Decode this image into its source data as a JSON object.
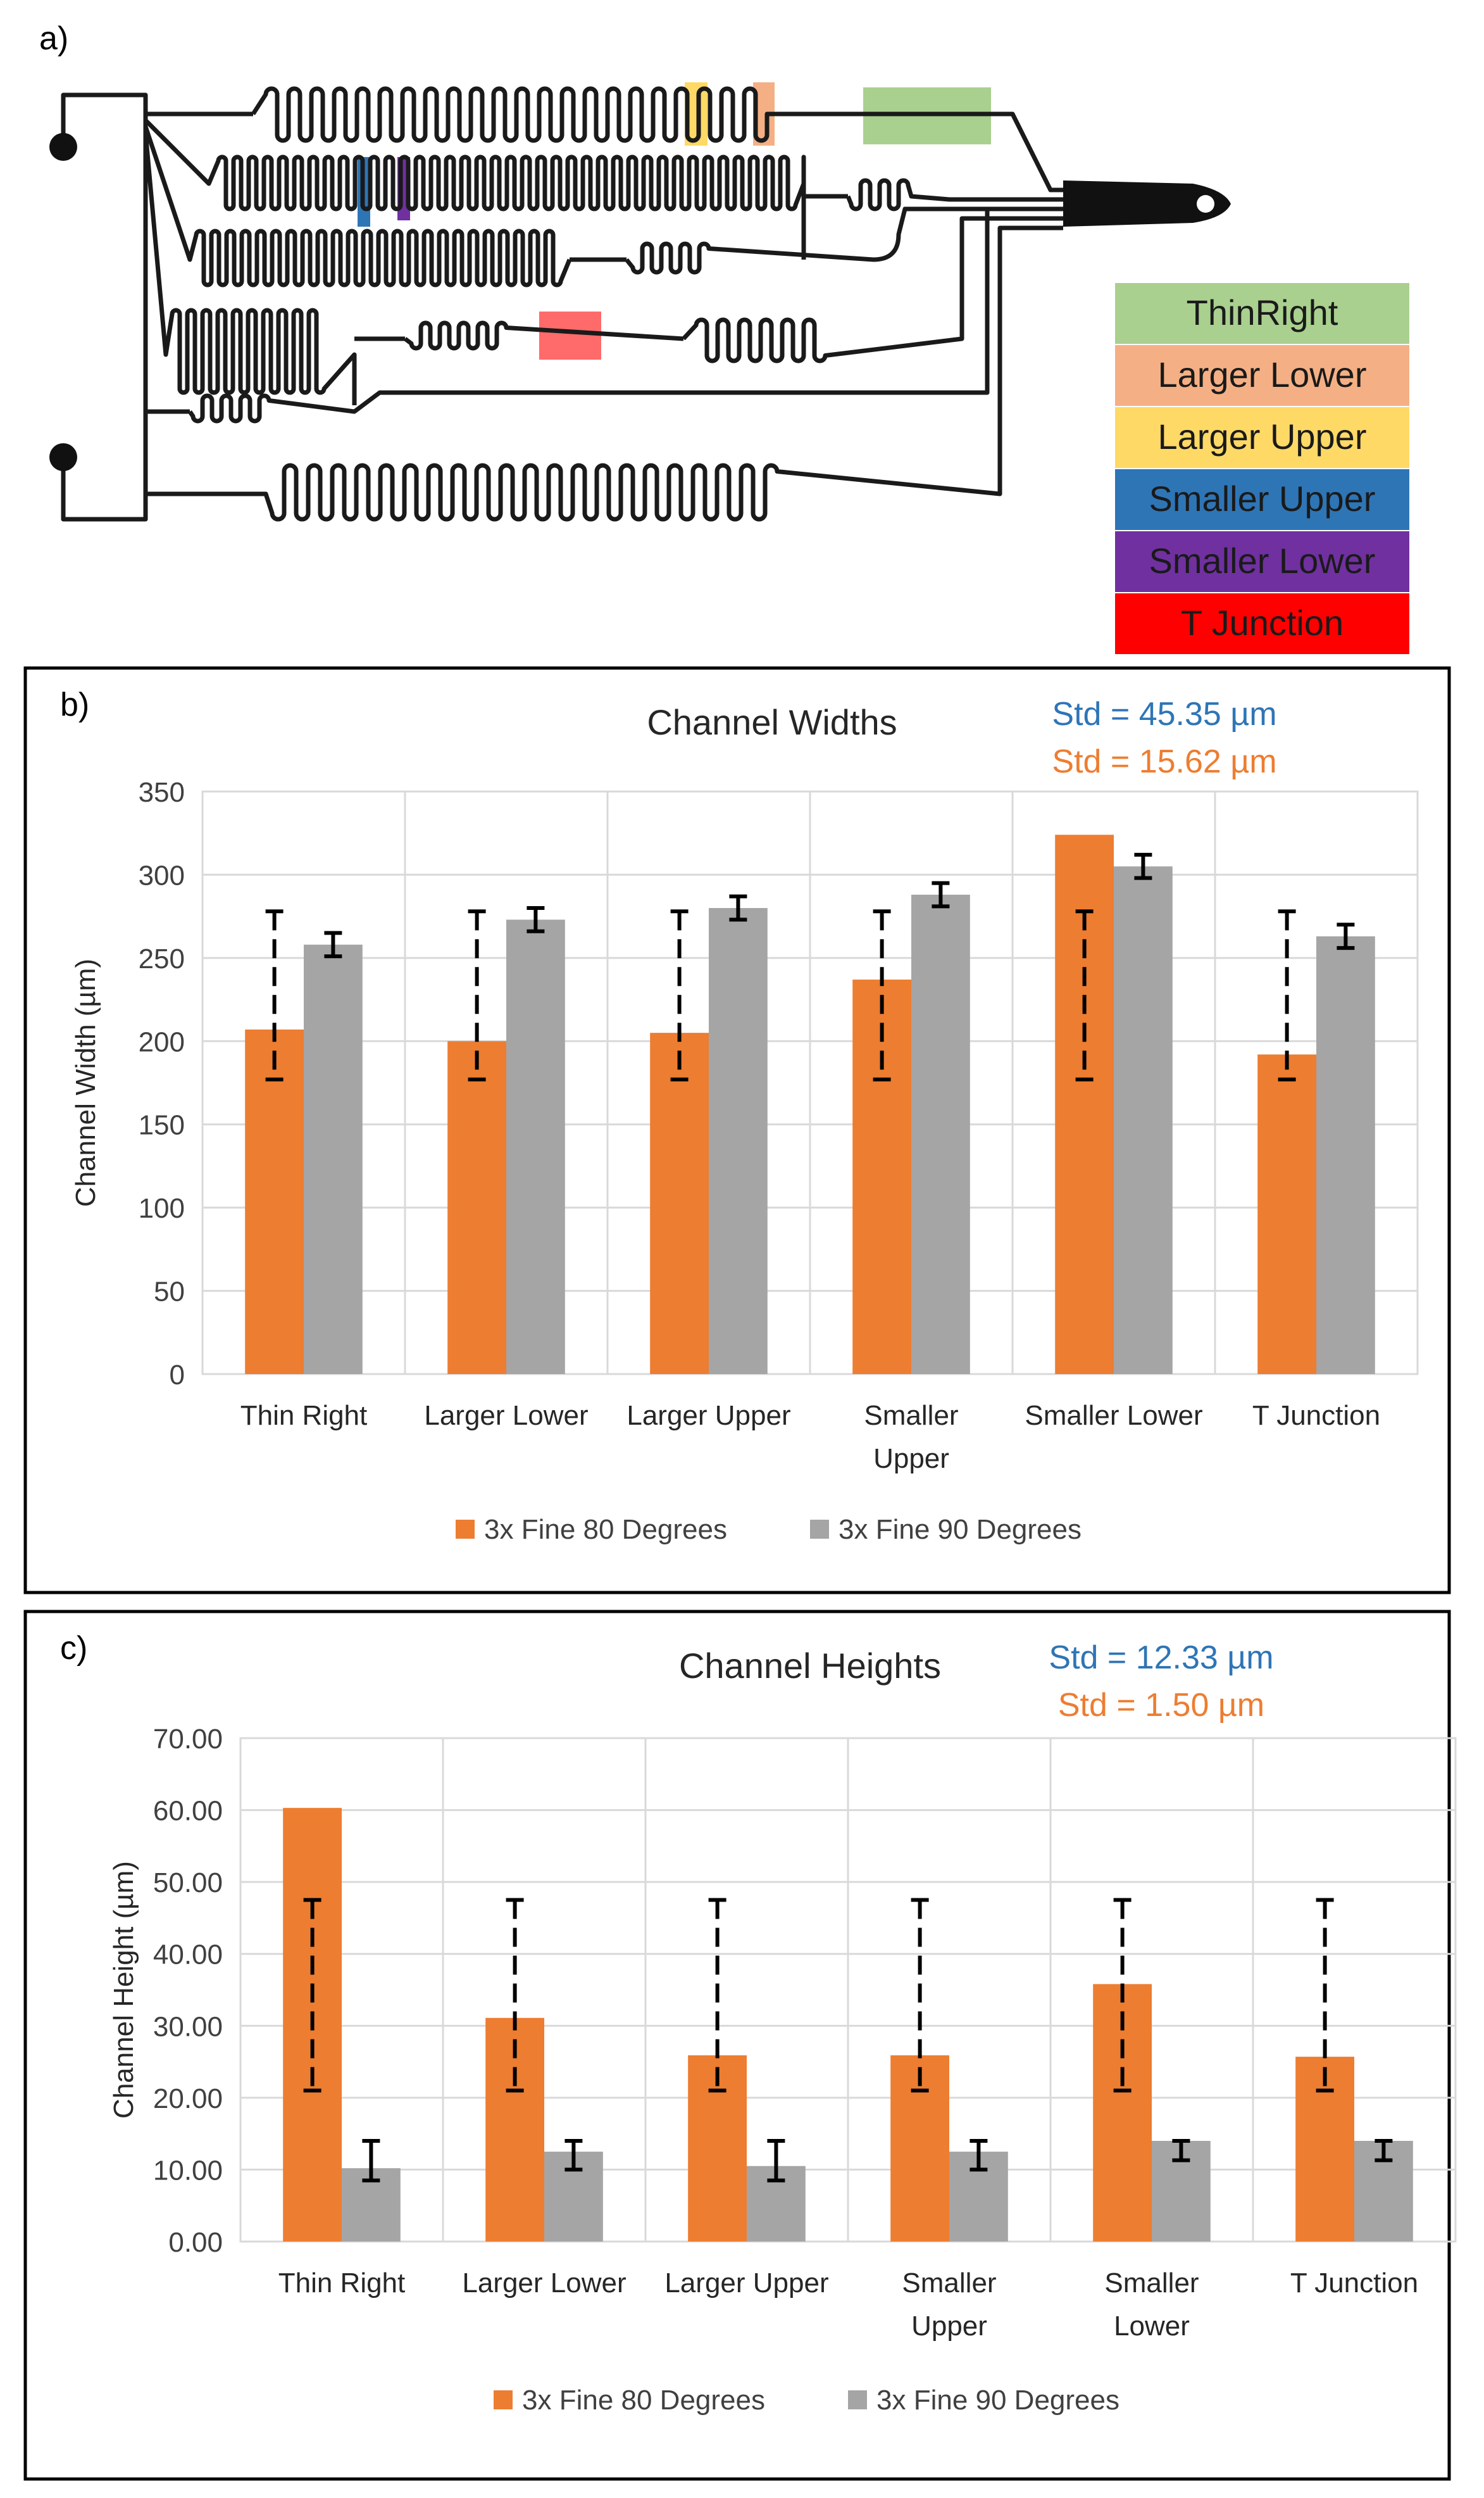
{
  "panel_a": {
    "label": "a)",
    "legend": [
      {
        "label": "ThinRight",
        "color": "#a9d08e"
      },
      {
        "label": "Larger Lower",
        "color": "#f4b084"
      },
      {
        "label": "Larger Upper",
        "color": "#ffd966"
      },
      {
        "label": "Smaller Upper",
        "color": "#2e75b6"
      },
      {
        "label": "Smaller Lower",
        "color": "#7030a0"
      },
      {
        "label": "T Junction",
        "color": "#ff0000"
      }
    ]
  },
  "chart_data": [
    {
      "type": "bar",
      "panel_label": "b)",
      "title": "Channel Widths",
      "ylabel": "Channel Width (µm)",
      "ylim": [
        0,
        350
      ],
      "yticks": [
        "0",
        "50",
        "100",
        "150",
        "200",
        "250",
        "300",
        "350"
      ],
      "categories": [
        [
          "Thin Right"
        ],
        [
          "Larger Lower"
        ],
        [
          "Larger Upper"
        ],
        [
          "Smaller",
          "Upper"
        ],
        [
          "Smaller Lower"
        ],
        [
          "T Junction"
        ]
      ],
      "series": [
        {
          "name": "3x Fine 80 Degrees",
          "color": "#ed7d31",
          "values": [
            207,
            200,
            205,
            237,
            324,
            192
          ],
          "error_low": [
            177,
            177,
            177,
            177,
            177,
            177
          ],
          "error_high": [
            278,
            278,
            278,
            278,
            278,
            278
          ],
          "error_style": "dashed"
        },
        {
          "name": "3x Fine 90 Degrees",
          "color": "#a5a5a5",
          "values": [
            258,
            273,
            280,
            288,
            305,
            263
          ],
          "error_low": [
            251,
            266,
            273,
            281,
            298,
            256
          ],
          "error_high": [
            265,
            280,
            287,
            295,
            312,
            270
          ],
          "error_style": "solid"
        }
      ],
      "annotations": [
        {
          "text": "Std = 45.35 µm",
          "color": "#2e75b6"
        },
        {
          "text": "Std = 15.62 µm",
          "color": "#ed7d31"
        }
      ],
      "grid": true,
      "legend_position": "bottom"
    },
    {
      "type": "bar",
      "panel_label": "c)",
      "title": "Channel Heights",
      "ylabel": "Channel Height (µm)",
      "ylim": [
        0,
        70
      ],
      "yticks": [
        "0.00",
        "10.00",
        "20.00",
        "30.00",
        "40.00",
        "50.00",
        "60.00",
        "70.00"
      ],
      "categories": [
        [
          "Thin Right"
        ],
        [
          "Larger Lower"
        ],
        [
          "Larger Upper"
        ],
        [
          "Smaller",
          "Upper"
        ],
        [
          "Smaller",
          "Lower"
        ],
        [
          "T Junction"
        ]
      ],
      "series": [
        {
          "name": "3x Fine 80 Degrees",
          "color": "#ed7d31",
          "values": [
            60.3,
            31.1,
            25.9,
            25.9,
            35.8,
            25.7
          ],
          "error_low": [
            21.0,
            21.0,
            21.0,
            21.0,
            21.0,
            21.0
          ],
          "error_high": [
            47.5,
            47.5,
            47.5,
            47.5,
            47.5,
            47.5
          ],
          "error_style": "dashed"
        },
        {
          "name": "3x Fine 90 Degrees",
          "color": "#a5a5a5",
          "values": [
            10.2,
            12.5,
            10.5,
            12.5,
            14.0,
            14.0
          ],
          "error_low": [
            8.5,
            10.0,
            8.5,
            10.0,
            11.3,
            11.3
          ],
          "error_high": [
            14.0,
            14.0,
            14.0,
            14.0,
            14.0,
            14.0
          ],
          "error_style": "solid"
        }
      ],
      "annotations": [
        {
          "text": "Std = 12.33 µm",
          "color": "#2e75b6"
        },
        {
          "text": "Std = 1.50 µm",
          "color": "#ed7d31"
        }
      ],
      "grid": true,
      "legend_position": "bottom"
    }
  ]
}
